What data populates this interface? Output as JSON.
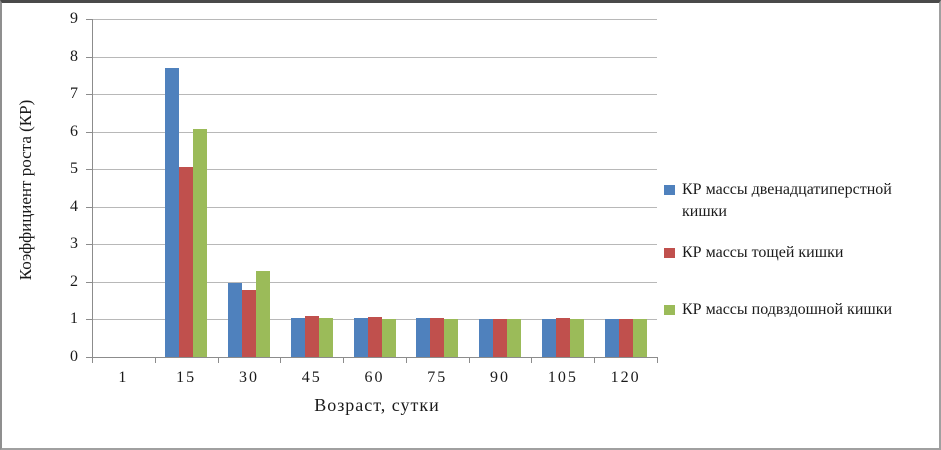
{
  "chart_data": {
    "type": "bar",
    "title": "",
    "xlabel": "Возраст, сутки",
    "ylabel": "Коэффициент роста (КР)",
    "categories": [
      "1",
      "15",
      "30",
      "45",
      "60",
      "75",
      "90",
      "105",
      "120"
    ],
    "series": [
      {
        "name": "КР массы двенадцатиперстной кишки",
        "color": "#4F81BD",
        "values": [
          0,
          7.7,
          1.98,
          1.05,
          1.05,
          1.04,
          1.02,
          1.02,
          1.0
        ]
      },
      {
        "name": "КР массы  тощей кишки",
        "color": "#C0504D",
        "values": [
          0,
          5.05,
          1.78,
          1.08,
          1.07,
          1.05,
          1.02,
          1.03,
          1.02
        ]
      },
      {
        "name": "КР массы подвздошной кишки",
        "color": "#9BBB59",
        "values": [
          0,
          6.08,
          2.28,
          1.05,
          1.0,
          1.0,
          1.0,
          1.0,
          1.0
        ]
      }
    ],
    "ylim": [
      0,
      9
    ],
    "ytick_step": 1,
    "grid": "horizontal",
    "legend_position": "right",
    "colors": {
      "gridline": "#b8b8b8",
      "axis": "#8c8c8c",
      "text": "#1a1a1a",
      "background": "#ffffff"
    }
  }
}
